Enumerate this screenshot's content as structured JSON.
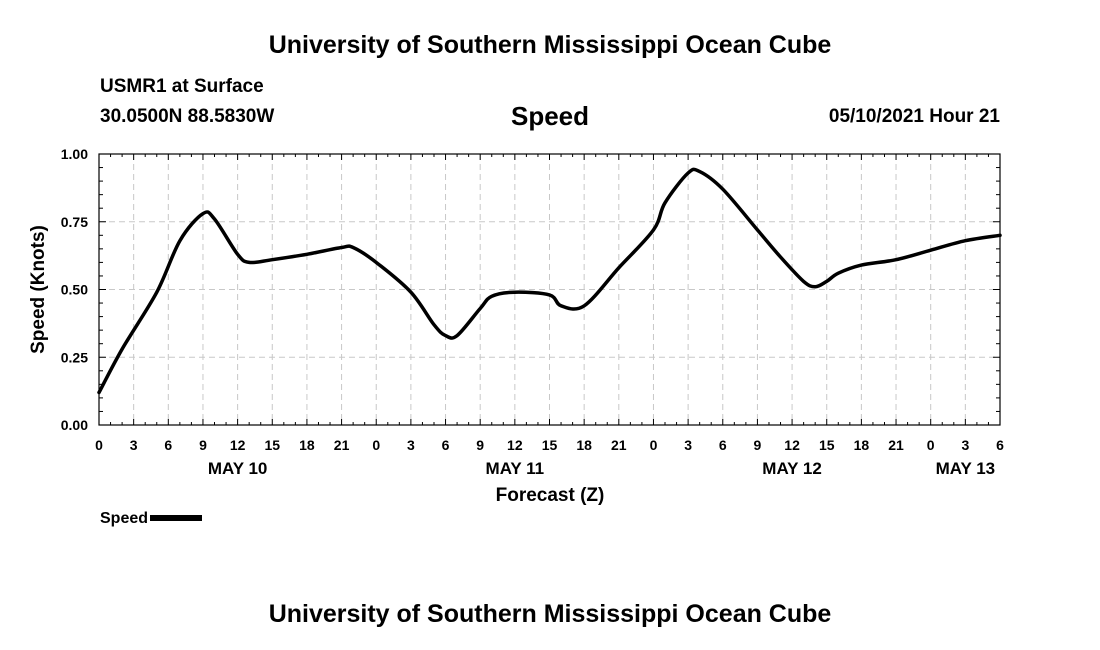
{
  "header": {
    "title_top": "University of Southern Mississippi Ocean Cube",
    "station": "USMR1 at Surface",
    "coordinates": "30.0500N  88.5830W",
    "chart_title": "Speed",
    "datetime": "05/10/2021 Hour 21",
    "title_bottom": "University of Southern Mississippi Ocean Cube"
  },
  "legend": {
    "label": "Speed"
  },
  "chart_data": {
    "type": "line",
    "title": "Speed",
    "xlabel": "Forecast (Z)",
    "ylabel": "Speed (Knots)",
    "xlim": [
      0,
      78
    ],
    "ylim": [
      0,
      1
    ],
    "x_ticks": [
      0,
      3,
      6,
      9,
      12,
      15,
      18,
      21,
      24,
      27,
      30,
      33,
      36,
      39,
      42,
      45,
      48,
      51,
      54,
      57,
      60,
      63,
      66,
      69,
      72,
      75,
      78
    ],
    "x_tick_labels": [
      "0",
      "3",
      "6",
      "9",
      "12",
      "15",
      "18",
      "21",
      "0",
      "3",
      "6",
      "9",
      "12",
      "15",
      "18",
      "21",
      "0",
      "3",
      "6",
      "9",
      "12",
      "15",
      "18",
      "21",
      "0",
      "3",
      "6"
    ],
    "date_labels": [
      {
        "x": 12,
        "label": "MAY 10"
      },
      {
        "x": 36,
        "label": "MAY 11"
      },
      {
        "x": 60,
        "label": "MAY 12"
      },
      {
        "x": 75,
        "label": "MAY 13"
      }
    ],
    "y_ticks": [
      0,
      0.25,
      0.5,
      0.75,
      1.0
    ],
    "y_tick_labels": [
      "0.00",
      "0.25",
      "0.50",
      "0.75",
      "1.00"
    ],
    "grid": true,
    "series": [
      {
        "name": "Speed",
        "color": "#000000",
        "x": [
          0,
          2,
          5,
          7,
          9,
          10,
          12,
          13,
          15,
          18,
          21,
          22,
          24,
          27,
          29,
          30,
          31,
          33,
          34,
          36,
          39,
          40,
          42,
          45,
          48,
          49,
          51,
          52,
          54,
          57,
          59,
          61,
          62,
          63,
          64,
          66,
          69,
          72,
          75,
          78
        ],
        "values": [
          0.12,
          0.28,
          0.49,
          0.68,
          0.78,
          0.76,
          0.63,
          0.6,
          0.61,
          0.63,
          0.655,
          0.655,
          0.6,
          0.49,
          0.37,
          0.33,
          0.33,
          0.43,
          0.475,
          0.49,
          0.48,
          0.44,
          0.44,
          0.58,
          0.72,
          0.82,
          0.93,
          0.935,
          0.87,
          0.72,
          0.62,
          0.53,
          0.51,
          0.53,
          0.56,
          0.59,
          0.61,
          0.645,
          0.68,
          0.7
        ]
      }
    ]
  }
}
